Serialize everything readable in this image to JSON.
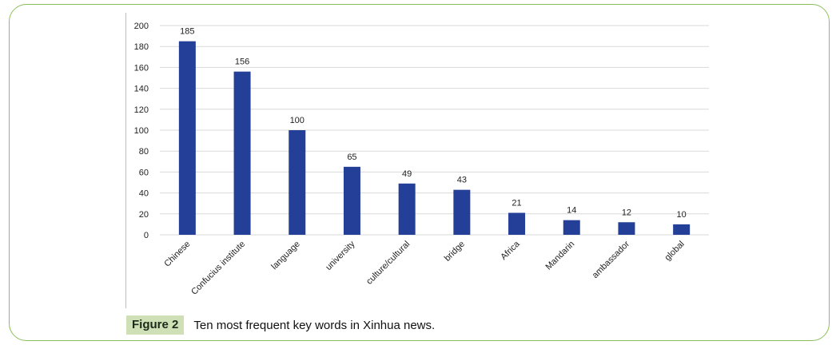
{
  "figure": {
    "label": "Figure 2",
    "caption": "Ten most frequent key words in Xinhua news."
  },
  "colors": {
    "bar": "#233f98",
    "grid": "#d9d9d9",
    "axis_text": "#222222",
    "frame": "#8cbf5a",
    "label_bg": "#cfe0b6"
  },
  "chart_data": {
    "type": "bar",
    "title": "",
    "xlabel": "",
    "ylabel": "",
    "categories": [
      "Chinese",
      "Confucius institute",
      "language",
      "university",
      "culture/cultural",
      "bridge",
      "Africa",
      "Mandarin",
      "ambassador",
      "global"
    ],
    "values": [
      185,
      156,
      100,
      65,
      49,
      43,
      21,
      14,
      12,
      10
    ],
    "ylim": [
      0,
      200
    ],
    "yticks": [
      0,
      20,
      40,
      60,
      80,
      100,
      120,
      140,
      160,
      180,
      200
    ],
    "grid": true,
    "data_labels": true
  }
}
